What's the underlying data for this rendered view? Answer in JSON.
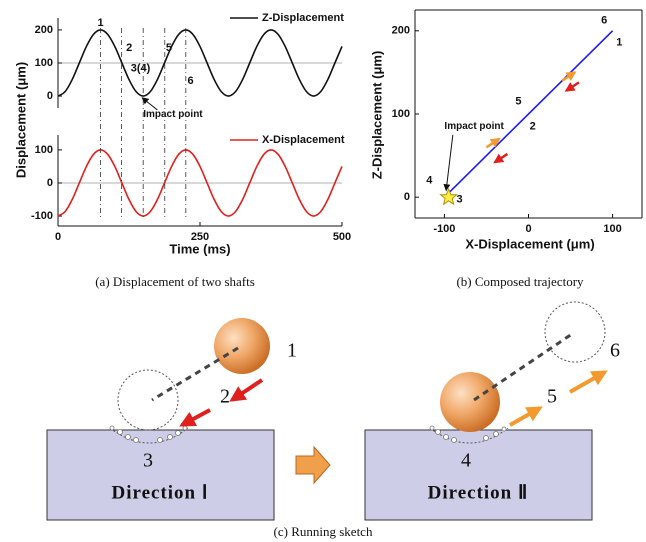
{
  "chart_data": [
    {
      "type": "line",
      "y_label": "Displacement (μm)",
      "x": [
        0,
        12.5,
        25,
        37.5,
        50,
        62.5,
        75,
        87.5,
        100,
        112.5,
        125,
        137.5,
        150,
        162.5,
        175,
        187.5,
        200,
        212.5,
        225,
        237.5,
        250,
        262.5,
        275,
        287.5,
        300,
        312.5,
        325,
        337.5,
        350,
        362.5,
        375,
        387.5,
        400,
        412.5,
        425,
        437.5,
        450,
        462.5,
        475,
        487.5,
        500
      ],
      "series": [
        {
          "name": "Z-Displacement",
          "color": "#111111",
          "values": [
            0,
            13.4,
            50,
            100,
            150,
            186.6,
            200,
            186.6,
            150,
            100,
            50,
            13.4,
            0,
            13.4,
            50,
            100,
            150,
            186.6,
            200,
            186.6,
            150,
            100,
            50,
            13.4,
            0,
            13.4,
            50,
            100,
            150,
            186.6,
            200,
            186.6,
            150,
            100,
            50,
            13.4,
            0,
            13.4,
            50,
            100,
            150
          ]
        }
      ],
      "xlim": [
        0,
        500
      ],
      "ylim": [
        -36,
        236
      ],
      "yticks": [
        0,
        100,
        200
      ],
      "reference_lines": [
        100
      ],
      "annotations": [
        "1",
        "2",
        "3(4)",
        "5",
        "6",
        "Impact point"
      ]
    },
    {
      "type": "line",
      "x_label": "Time (ms)",
      "x": [
        0,
        12.5,
        25,
        37.5,
        50,
        62.5,
        75,
        87.5,
        100,
        112.5,
        125,
        137.5,
        150,
        162.5,
        175,
        187.5,
        200,
        212.5,
        225,
        237.5,
        250,
        262.5,
        275,
        287.5,
        300,
        312.5,
        325,
        337.5,
        350,
        362.5,
        375,
        387.5,
        400,
        412.5,
        425,
        437.5,
        450,
        462.5,
        475,
        487.5,
        500
      ],
      "series": [
        {
          "name": "X-Displacement",
          "color": "#e0201c",
          "values": [
            -100,
            -86.6,
            -50,
            0,
            50,
            86.6,
            100,
            86.6,
            50,
            0,
            -50,
            -86.6,
            -100,
            -86.6,
            -50,
            0,
            50,
            86.6,
            100,
            86.6,
            50,
            0,
            -50,
            -86.6,
            -100,
            -86.6,
            -50,
            0,
            50,
            86.6,
            100,
            86.6,
            50,
            0,
            -50,
            -86.6,
            -100,
            -86.6,
            -50,
            0,
            50
          ]
        }
      ],
      "xlim": [
        0,
        500
      ],
      "xticks": [
        0,
        250,
        500
      ],
      "ylim": [
        -130,
        145
      ],
      "yticks": [
        -100,
        0,
        100
      ],
      "reference_lines": [
        0
      ]
    },
    {
      "type": "line",
      "x_label": "X-Displacement (μm)",
      "y_label": "Z-Displacement (μm)",
      "x": [
        -100,
        100
      ],
      "values": [
        0,
        200
      ],
      "color": "#1a1aff",
      "xlim": [
        -135,
        135
      ],
      "xticks": [
        -100,
        0,
        100
      ],
      "ylim": [
        -25,
        225
      ],
      "yticks": [
        0,
        100,
        200
      ],
      "annotations": [
        "6",
        "1",
        "5",
        "2",
        "4",
        "3",
        "Impact point"
      ]
    }
  ],
  "captions": [
    "(a) Displacement of two shafts",
    "(b) Composed trajectory",
    "(c) Running sketch"
  ],
  "sketch": {
    "labels": [
      "1",
      "2",
      "3",
      "Direction Ⅰ",
      "4",
      "5",
      "6",
      "Direction Ⅱ"
    ]
  }
}
